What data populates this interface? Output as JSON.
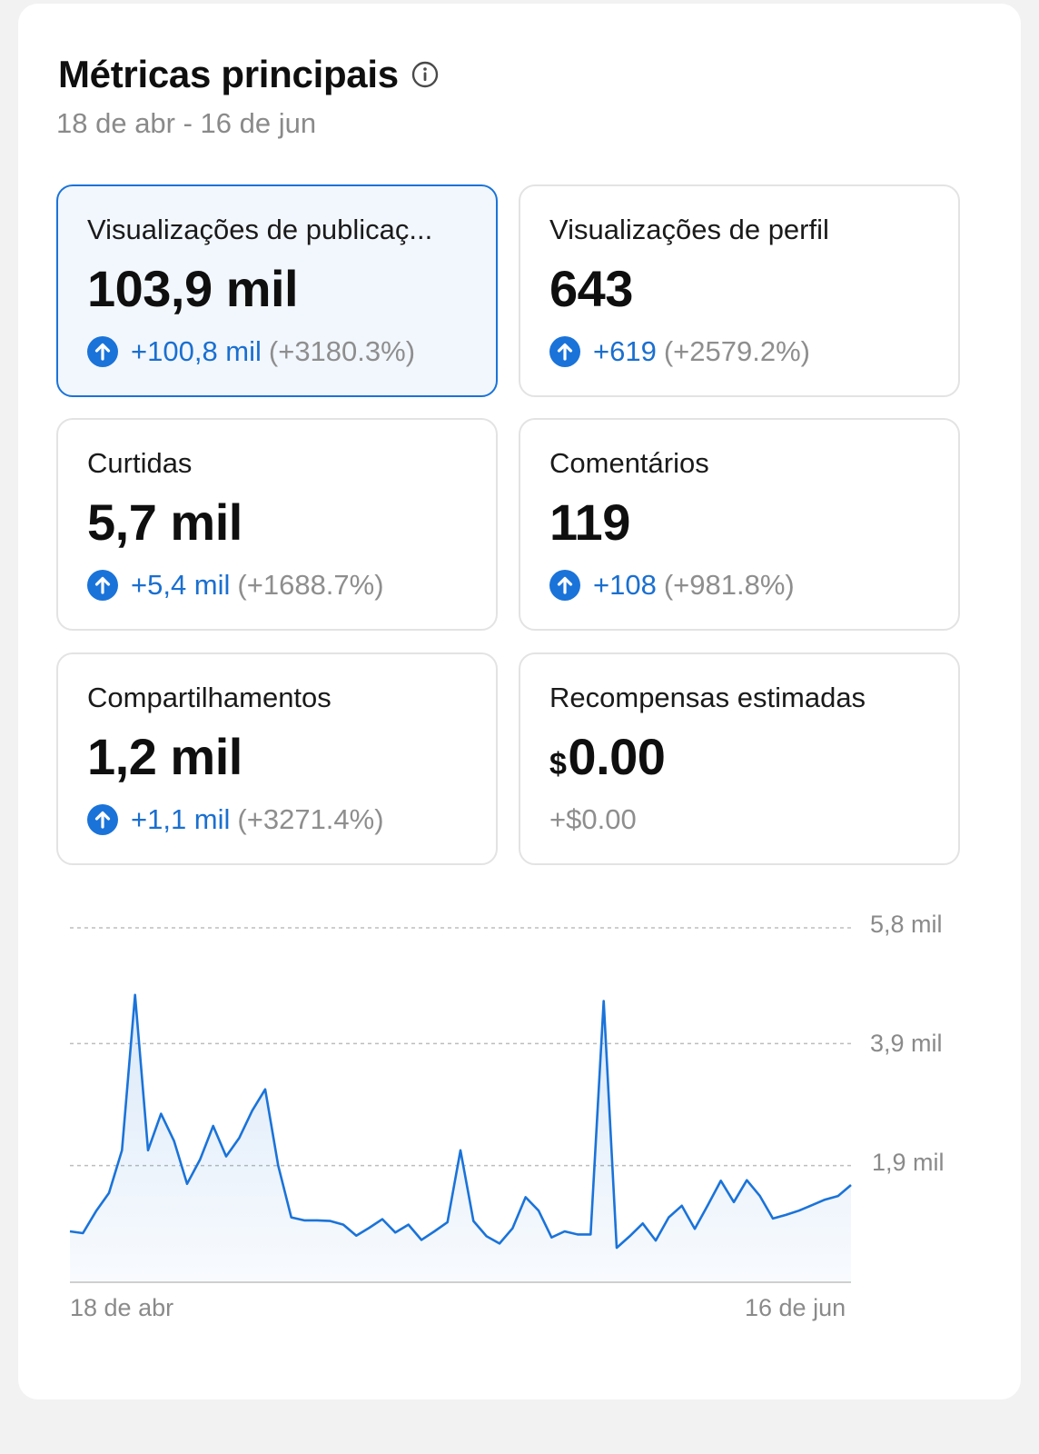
{
  "header": {
    "title": "Métricas principais",
    "date_range": "18 de abr - 16 de jun"
  },
  "metrics": [
    {
      "label": "Visualizações de publicaç...",
      "value": "103,9 mil",
      "delta_abs": "+100,8 mil",
      "delta_pct": "(+3180.3%)",
      "selected": true,
      "icon": "arrow-up-circle-icon"
    },
    {
      "label": "Visualizações de perfil",
      "value": "643",
      "delta_abs": "+619",
      "delta_pct": "(+2579.2%)",
      "selected": false,
      "icon": "arrow-up-circle-icon"
    },
    {
      "label": "Curtidas",
      "value": "5,7 mil",
      "delta_abs": "+5,4 mil",
      "delta_pct": "(+1688.7%)",
      "selected": false,
      "icon": "arrow-up-circle-icon"
    },
    {
      "label": "Comentários",
      "value": "119",
      "delta_abs": "+108",
      "delta_pct": "(+981.8%)",
      "selected": false,
      "icon": "arrow-up-circle-icon"
    },
    {
      "label": "Compartilhamentos",
      "value": "1,2 mil",
      "delta_abs": "+1,1 mil",
      "delta_pct": "(+3271.4%)",
      "selected": false,
      "icon": "arrow-up-circle-icon"
    },
    {
      "label": "Recompensas estimadas",
      "value_currency": "$",
      "value": "0.00",
      "delta_text": "+$0.00",
      "selected": false
    }
  ],
  "colors": {
    "accent": "#1a73d9",
    "positive_text": "#1a6fd0",
    "muted_text": "#8e8e8e",
    "selected_bg": "#f2f7fd"
  },
  "chart_data": {
    "type": "area",
    "x_labels": [
      "18 de abr",
      "16 de jun"
    ],
    "y_ticks": [
      "5,8 mil",
      "3,9 mil",
      "1,9 mil"
    ],
    "ylim": [
      0,
      5800
    ],
    "grid": true,
    "values": [
      820,
      790,
      1150,
      1450,
      2150,
      4700,
      2150,
      2750,
      2300,
      1600,
      2000,
      2550,
      2050,
      2350,
      2800,
      3150,
      1900,
      1050,
      1000,
      1000,
      990,
      930,
      750,
      880,
      1020,
      800,
      930,
      680,
      820,
      970,
      2150,
      990,
      740,
      620,
      870,
      1380,
      1160,
      720,
      820,
      770,
      770,
      4600,
      550,
      740,
      950,
      670,
      1050,
      1240,
      860,
      1250,
      1650,
      1300,
      1660,
      1400,
      1030,
      1090,
      1160,
      1250,
      1340,
      1400,
      1580
    ]
  }
}
